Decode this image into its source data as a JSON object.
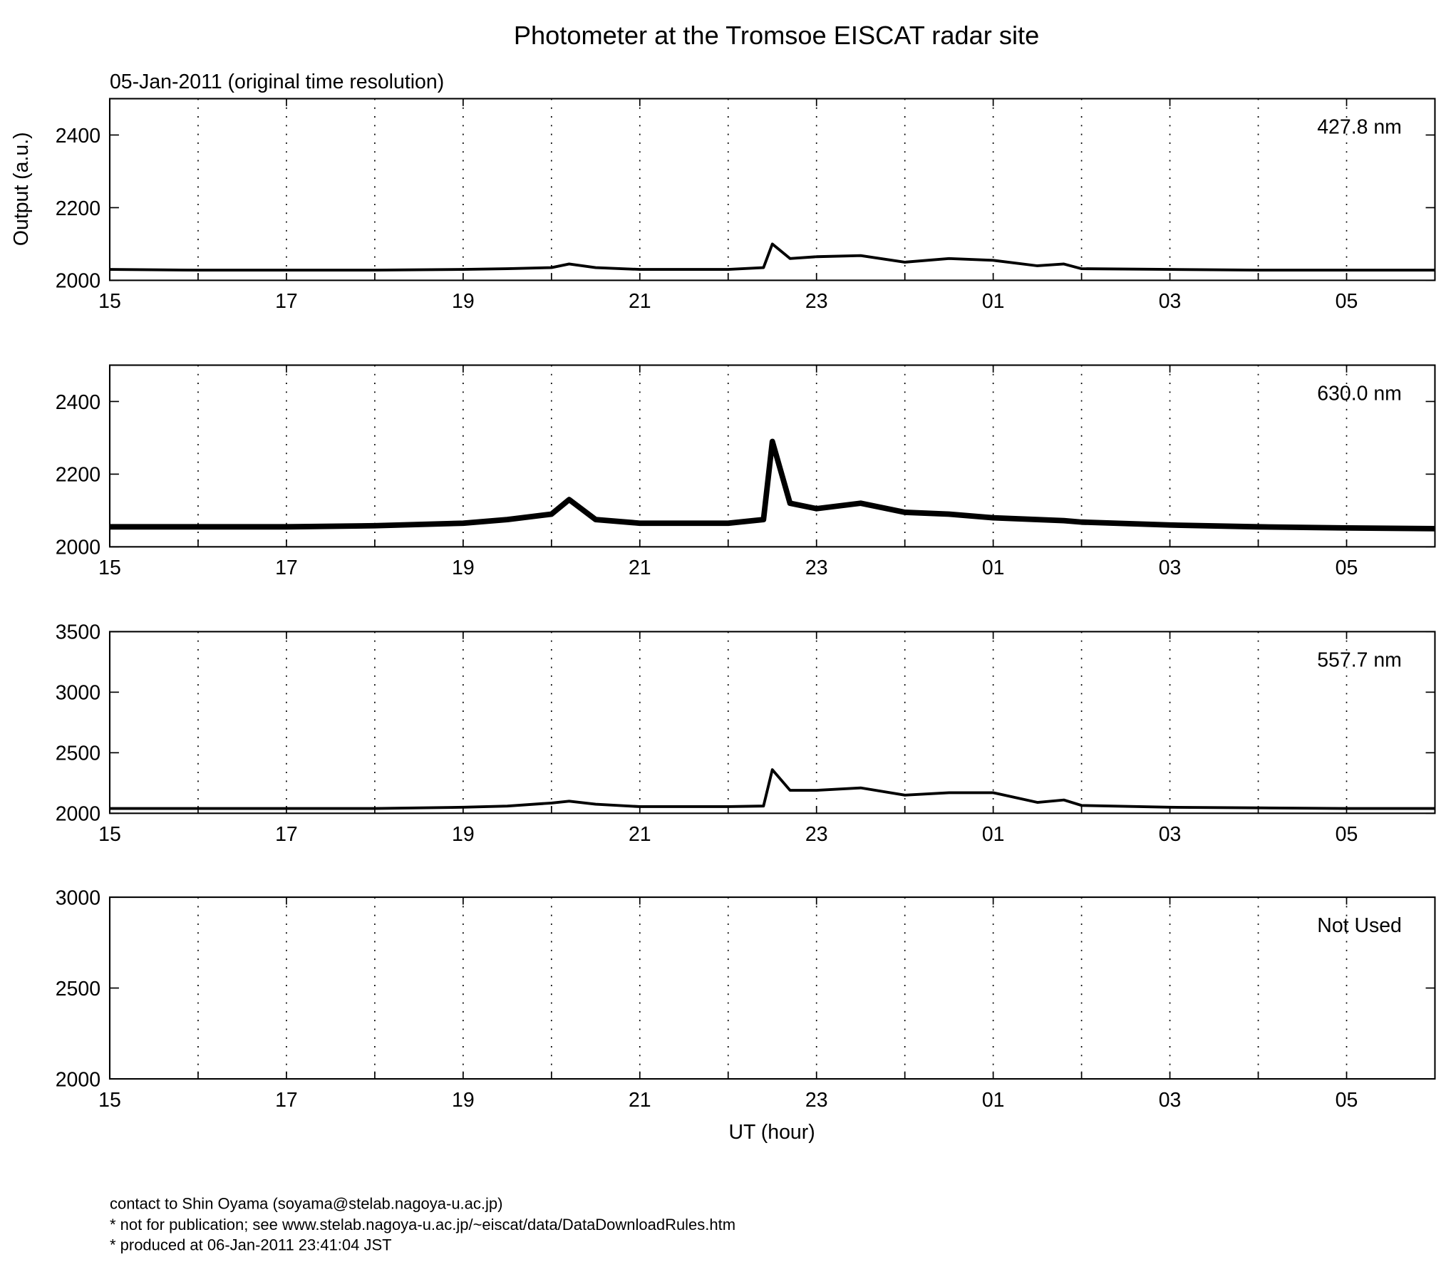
{
  "chart_data": [
    {
      "type": "line",
      "title": "Photometer at the Tromsoe EISCAT radar site",
      "subtitle": "05-Jan-2011 (original time resolution)",
      "ylabel": "Output (a.u.)",
      "annotation": "427.8 nm",
      "color": "#000000",
      "x": [
        15,
        16,
        17,
        18,
        19,
        19.5,
        20,
        20.2,
        20.5,
        21,
        22,
        22.4,
        22.5,
        22.7,
        23,
        23.5,
        24,
        24.5,
        25,
        25.5,
        25.8,
        26,
        27,
        28,
        29,
        30
      ],
      "values": [
        2030,
        2028,
        2028,
        2028,
        2030,
        2032,
        2035,
        2045,
        2035,
        2030,
        2030,
        2035,
        2100,
        2060,
        2065,
        2068,
        2050,
        2060,
        2055,
        2040,
        2045,
        2032,
        2030,
        2028,
        2028,
        2028
      ],
      "xlim": [
        15,
        30
      ],
      "xticks": [
        15,
        17,
        19,
        21,
        23,
        {
          "value": 25,
          "label": "01"
        },
        {
          "value": 27,
          "label": "03"
        },
        {
          "value": 29,
          "label": "05"
        }
      ],
      "minor_xticks": [
        16,
        18,
        20,
        22,
        24,
        26,
        28,
        30
      ],
      "ylim": [
        2000,
        2500
      ],
      "yticks": [
        2000,
        2200,
        2400
      ],
      "grid": true
    },
    {
      "type": "line",
      "annotation": "630.0 nm",
      "color": "#000000",
      "x": [
        15,
        16,
        17,
        18,
        19,
        19.5,
        20,
        20.2,
        20.5,
        21,
        22,
        22.4,
        22.5,
        22.7,
        23,
        23.5,
        24,
        24.5,
        25,
        25.5,
        25.8,
        26,
        27,
        28,
        29,
        30
      ],
      "values": [
        2055,
        2055,
        2055,
        2058,
        2065,
        2075,
        2090,
        2130,
        2075,
        2065,
        2065,
        2075,
        2290,
        2120,
        2105,
        2120,
        2095,
        2090,
        2080,
        2075,
        2072,
        2068,
        2060,
        2055,
        2052,
        2050
      ],
      "xlim": [
        15,
        30
      ],
      "xticks": [
        15,
        17,
        19,
        21,
        23,
        {
          "value": 25,
          "label": "01"
        },
        {
          "value": 27,
          "label": "03"
        },
        {
          "value": 29,
          "label": "05"
        }
      ],
      "minor_xticks": [
        16,
        18,
        20,
        22,
        24,
        26,
        28,
        30
      ],
      "ylim": [
        2000,
        2500
      ],
      "yticks": [
        2000,
        2200,
        2400
      ],
      "grid": true
    },
    {
      "type": "line",
      "annotation": "557.7 nm",
      "color": "#000000",
      "x": [
        15,
        16,
        17,
        18,
        19,
        19.5,
        20,
        20.2,
        20.5,
        21,
        22,
        22.4,
        22.5,
        22.7,
        23,
        23.5,
        24,
        24.5,
        25,
        25.5,
        25.8,
        26,
        27,
        28,
        29,
        30
      ],
      "values": [
        2040,
        2040,
        2040,
        2040,
        2050,
        2060,
        2085,
        2100,
        2075,
        2055,
        2055,
        2060,
        2360,
        2190,
        2190,
        2210,
        2150,
        2170,
        2170,
        2090,
        2110,
        2065,
        2050,
        2045,
        2040,
        2040
      ],
      "xlim": [
        15,
        30
      ],
      "xticks": [
        15,
        17,
        19,
        21,
        23,
        {
          "value": 25,
          "label": "01"
        },
        {
          "value": 27,
          "label": "03"
        },
        {
          "value": 29,
          "label": "05"
        }
      ],
      "minor_xticks": [
        16,
        18,
        20,
        22,
        24,
        26,
        28,
        30
      ],
      "ylim": [
        2000,
        3500
      ],
      "yticks": [
        2000,
        2500,
        3000,
        3500
      ],
      "grid": true
    },
    {
      "type": "line",
      "annotation": "Not Used",
      "xlabel": "UT (hour)",
      "xlim": [
        15,
        30
      ],
      "xticks": [
        15,
        17,
        19,
        21,
        23,
        {
          "value": 25,
          "label": "01"
        },
        {
          "value": 27,
          "label": "03"
        },
        {
          "value": 29,
          "label": "05"
        }
      ],
      "minor_xticks": [
        16,
        18,
        20,
        22,
        24,
        26,
        28,
        30
      ],
      "ylim": [
        2000,
        3000
      ],
      "yticks": [
        2000,
        2500,
        3000
      ],
      "grid": true
    }
  ],
  "footer": [
    "contact to Shin Oyama (soyama@stelab.nagoya-u.ac.jp)",
    "* not for publication; see www.stelab.nagoya-u.ac.jp/~eiscat/data/DataDownloadRules.htm",
    "* produced at 06-Jan-2011 23:41:04 JST"
  ]
}
